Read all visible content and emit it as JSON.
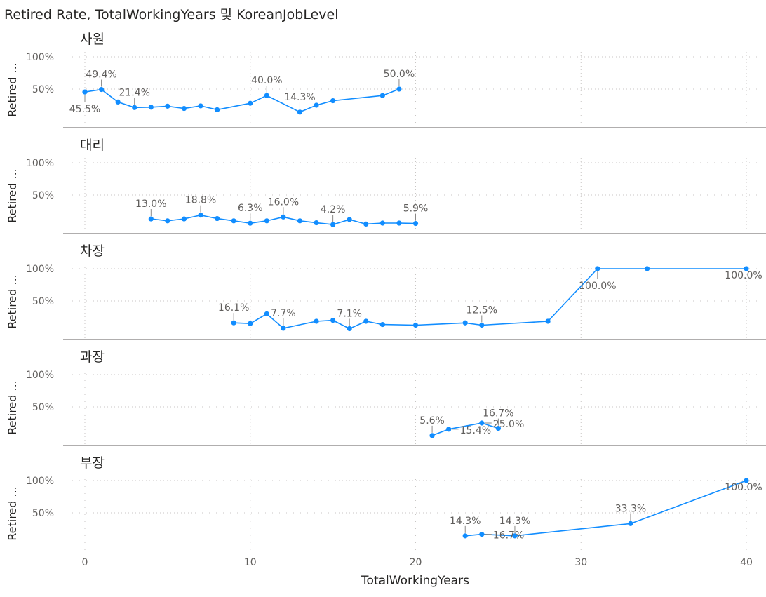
{
  "chart_data": {
    "type": "line",
    "title": "Retired Rate, TotalWorkingYears 및 KoreanJobLevel",
    "xlabel": "TotalWorkingYears",
    "ylabel": "Retired ...",
    "xlim": [
      0,
      40
    ],
    "ylim": [
      0,
      100
    ],
    "x_ticks": [
      0,
      10,
      20,
      30,
      40
    ],
    "y_ticks": [
      50,
      100
    ],
    "y_tick_labels": [
      "50%",
      "100%"
    ],
    "grid": true,
    "line_color": "#118DFF",
    "panels": [
      {
        "name": "사원",
        "points": [
          {
            "x": 0,
            "y": 45.5
          },
          {
            "x": 1,
            "y": 49.4
          },
          {
            "x": 2,
            "y": 30
          },
          {
            "x": 3,
            "y": 21.4
          },
          {
            "x": 4,
            "y": 22
          },
          {
            "x": 5,
            "y": 23.5
          },
          {
            "x": 6,
            "y": 20
          },
          {
            "x": 7,
            "y": 24
          },
          {
            "x": 8,
            "y": 18
          },
          {
            "x": 10,
            "y": 28
          },
          {
            "x": 11,
            "y": 40.0
          },
          {
            "x": 13,
            "y": 14.3
          },
          {
            "x": 14,
            "y": 25
          },
          {
            "x": 15,
            "y": 32
          },
          {
            "x": 18,
            "y": 40
          },
          {
            "x": 19,
            "y": 50.0
          }
        ],
        "labels": [
          {
            "x": 0,
            "y": 45.5,
            "text": "45.5%",
            "pos": "below"
          },
          {
            "x": 1,
            "y": 49.4,
            "text": "49.4%",
            "pos": "above"
          },
          {
            "x": 3,
            "y": 21.4,
            "text": "21.4%",
            "pos": "above"
          },
          {
            "x": 11,
            "y": 40.0,
            "text": "40.0%",
            "pos": "above"
          },
          {
            "x": 13,
            "y": 14.3,
            "text": "14.3%",
            "pos": "above"
          },
          {
            "x": 19,
            "y": 50.0,
            "text": "50.0%",
            "pos": "above"
          }
        ]
      },
      {
        "name": "대리",
        "points": [
          {
            "x": 4,
            "y": 13.0
          },
          {
            "x": 5,
            "y": 10
          },
          {
            "x": 6,
            "y": 13
          },
          {
            "x": 7,
            "y": 18.8
          },
          {
            "x": 8,
            "y": 13.5
          },
          {
            "x": 9,
            "y": 10
          },
          {
            "x": 10,
            "y": 6.3
          },
          {
            "x": 11,
            "y": 10
          },
          {
            "x": 12,
            "y": 16.0
          },
          {
            "x": 13,
            "y": 10
          },
          {
            "x": 14,
            "y": 7
          },
          {
            "x": 15,
            "y": 4.2
          },
          {
            "x": 16,
            "y": 12
          },
          {
            "x": 17,
            "y": 5
          },
          {
            "x": 18,
            "y": 6.5
          },
          {
            "x": 19,
            "y": 6.5
          },
          {
            "x": 20,
            "y": 5.9
          }
        ],
        "labels": [
          {
            "x": 4,
            "y": 13.0,
            "text": "13.0%",
            "pos": "above"
          },
          {
            "x": 7,
            "y": 18.8,
            "text": "18.8%",
            "pos": "above"
          },
          {
            "x": 10,
            "y": 6.3,
            "text": "6.3%",
            "pos": "above"
          },
          {
            "x": 12,
            "y": 16.0,
            "text": "16.0%",
            "pos": "above"
          },
          {
            "x": 15,
            "y": 4.2,
            "text": "4.2%",
            "pos": "above"
          },
          {
            "x": 20,
            "y": 5.9,
            "text": "5.9%",
            "pos": "above"
          }
        ]
      },
      {
        "name": "차장",
        "points": [
          {
            "x": 9,
            "y": 16.1
          },
          {
            "x": 10,
            "y": 15
          },
          {
            "x": 11,
            "y": 30
          },
          {
            "x": 12,
            "y": 7.7
          },
          {
            "x": 14,
            "y": 18.5
          },
          {
            "x": 15,
            "y": 20
          },
          {
            "x": 16,
            "y": 7.1
          },
          {
            "x": 17,
            "y": 18.5
          },
          {
            "x": 18,
            "y": 13.5
          },
          {
            "x": 20,
            "y": 12.5
          },
          {
            "x": 23,
            "y": 16
          },
          {
            "x": 24,
            "y": 12.5
          },
          {
            "x": 28,
            "y": 18.5
          },
          {
            "x": 31,
            "y": 100.0
          },
          {
            "x": 34,
            "y": 100
          },
          {
            "x": 40,
            "y": 100.0
          }
        ],
        "labels": [
          {
            "x": 9,
            "y": 16.1,
            "text": "16.1%",
            "pos": "above"
          },
          {
            "x": 12,
            "y": 7.7,
            "text": "7.7%",
            "pos": "above"
          },
          {
            "x": 16,
            "y": 7.1,
            "text": "7.1%",
            "pos": "above"
          },
          {
            "x": 24,
            "y": 12.5,
            "text": "12.5%",
            "pos": "above"
          },
          {
            "x": 31,
            "y": 100.0,
            "text": "100.0%",
            "pos": "below"
          },
          {
            "x": 40,
            "y": 100.0,
            "text": "100.0%",
            "pos": "below-left"
          }
        ]
      },
      {
        "name": "과장",
        "points": [
          {
            "x": 21,
            "y": 5.6
          },
          {
            "x": 22,
            "y": 15.4
          },
          {
            "x": 24,
            "y": 25.0
          },
          {
            "x": 25,
            "y": 16.7
          }
        ],
        "labels": [
          {
            "x": 21,
            "y": 5.6,
            "text": "5.6%",
            "pos": "above"
          },
          {
            "x": 22,
            "y": 15.4,
            "text": "15.4%",
            "pos": "right-side"
          },
          {
            "x": 24,
            "y": 25.0,
            "text": "25.0%",
            "pos": "right-side"
          },
          {
            "x": 25,
            "y": 16.7,
            "text": "16.7%",
            "pos": "above"
          }
        ]
      },
      {
        "name": "부장",
        "points": [
          {
            "x": 23,
            "y": 14.3
          },
          {
            "x": 24,
            "y": 16.7
          },
          {
            "x": 26,
            "y": 14.3
          },
          {
            "x": 33,
            "y": 33.3
          },
          {
            "x": 40,
            "y": 100.0
          }
        ],
        "labels": [
          {
            "x": 23,
            "y": 14.3,
            "text": "14.3%",
            "pos": "above"
          },
          {
            "x": 24,
            "y": 16.7,
            "text": "16.7%",
            "pos": "right-side"
          },
          {
            "x": 26,
            "y": 14.3,
            "text": "14.3%",
            "pos": "above"
          },
          {
            "x": 33,
            "y": 33.3,
            "text": "33.3%",
            "pos": "above"
          },
          {
            "x": 40,
            "y": 100.0,
            "text": "100.0%",
            "pos": "below-left"
          }
        ]
      }
    ]
  }
}
